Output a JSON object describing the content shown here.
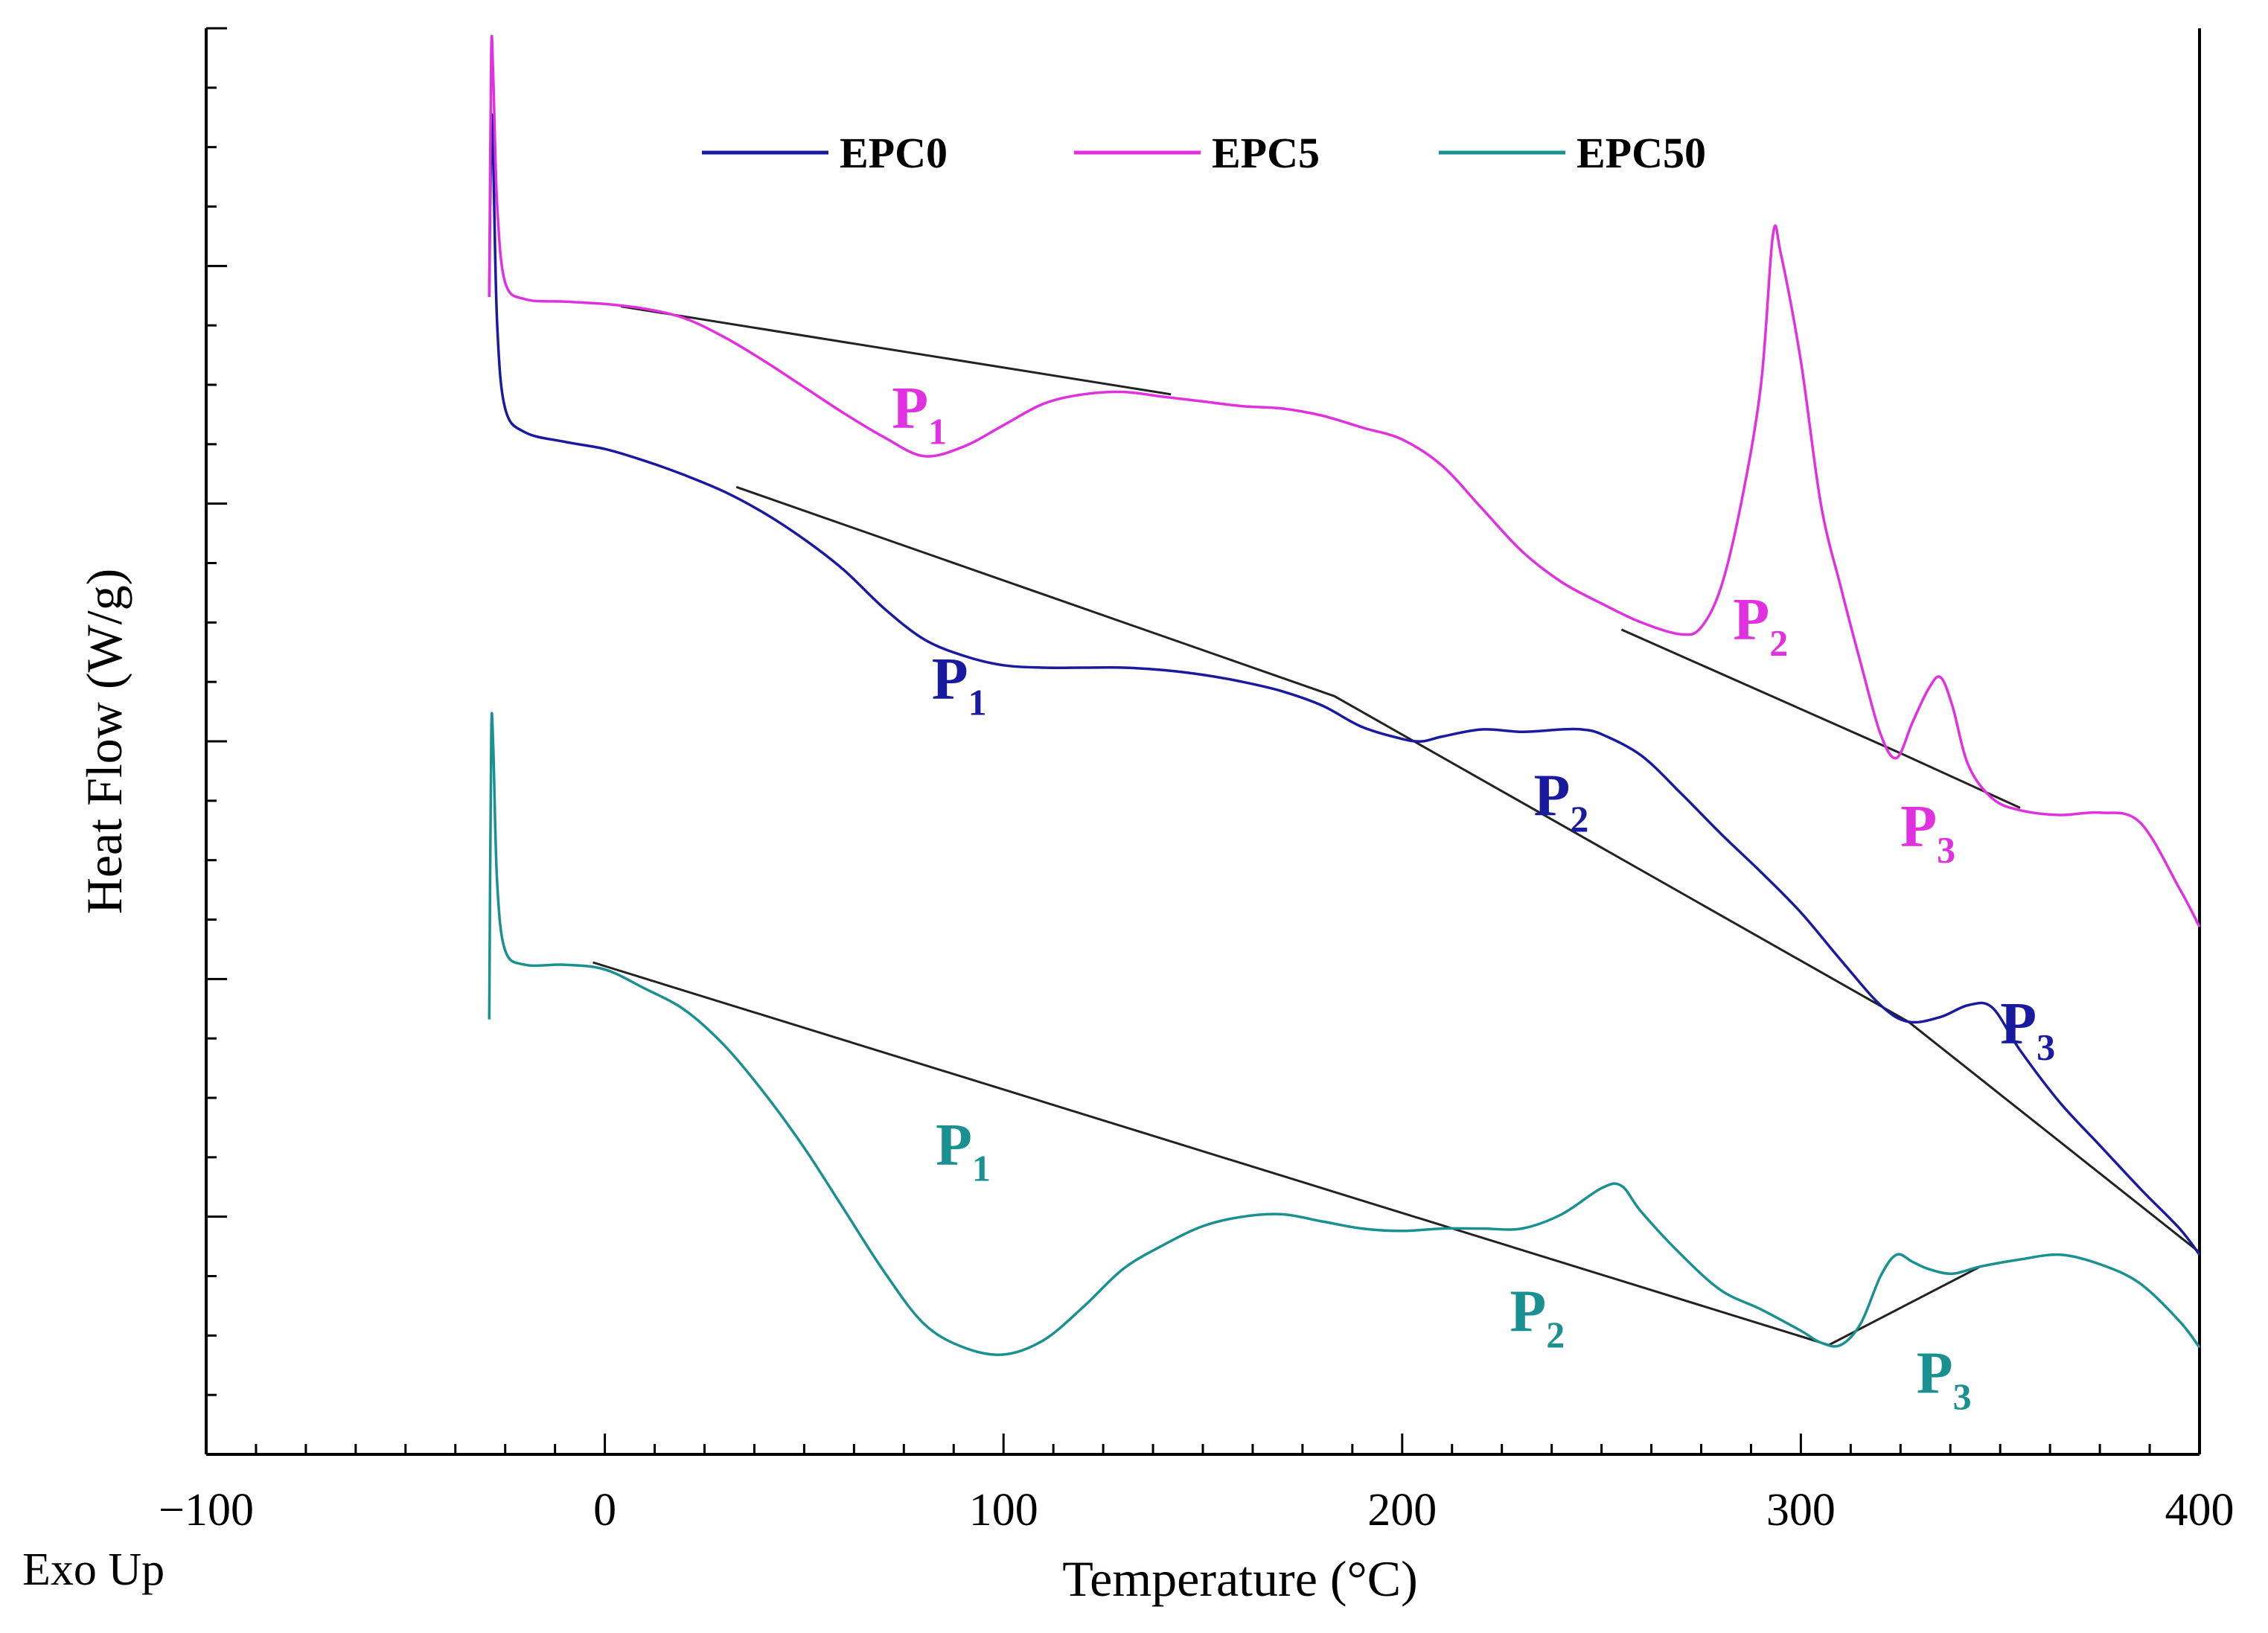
{
  "chart_data": {
    "type": "line",
    "title": "",
    "xlabel": "Temperature (°C)",
    "ylabel": "Heat Flow (W/g)",
    "corner_note": "Exo Up",
    "xlim": [
      -100,
      400
    ],
    "ylim": [
      0,
      600
    ],
    "x_ticks": [
      -100,
      0,
      100,
      200,
      300,
      400
    ],
    "x_tick_labels": [
      "−100",
      "0",
      "100",
      "200",
      "300",
      "400"
    ],
    "y_tick_labels_shown": false,
    "legend_position": "top-center",
    "series": [
      {
        "name": "EPC0",
        "color": "#1a1aa0",
        "points": [
          [
            -29,
            487
          ],
          [
            -28.5,
            560
          ],
          [
            -28,
            545
          ],
          [
            -27,
            475
          ],
          [
            -25,
            440
          ],
          [
            -20,
            430
          ],
          [
            -10,
            426
          ],
          [
            0,
            423
          ],
          [
            10,
            418
          ],
          [
            20,
            412
          ],
          [
            30,
            405
          ],
          [
            40,
            396
          ],
          [
            50,
            385
          ],
          [
            60,
            372
          ],
          [
            70,
            356
          ],
          [
            80,
            343
          ],
          [
            90,
            336
          ],
          [
            100,
            332
          ],
          [
            110,
            331
          ],
          [
            120,
            331
          ],
          [
            130,
            331
          ],
          [
            140,
            330
          ],
          [
            150,
            328
          ],
          [
            160,
            325
          ],
          [
            170,
            321
          ],
          [
            180,
            315
          ],
          [
            190,
            306
          ],
          [
            200,
            301
          ],
          [
            205,
            300
          ],
          [
            210,
            302
          ],
          [
            220,
            305
          ],
          [
            230,
            304
          ],
          [
            240,
            305
          ],
          [
            245,
            305
          ],
          [
            250,
            303
          ],
          [
            260,
            294
          ],
          [
            270,
            278
          ],
          [
            280,
            261
          ],
          [
            290,
            245
          ],
          [
            300,
            228
          ],
          [
            310,
            208
          ],
          [
            320,
            189
          ],
          [
            327,
            182
          ],
          [
            335,
            184
          ],
          [
            342,
            189
          ],
          [
            348,
            188
          ],
          [
            355,
            170
          ],
          [
            365,
            148
          ],
          [
            375,
            130
          ],
          [
            385,
            112
          ],
          [
            395,
            95
          ],
          [
            400,
            84
          ]
        ]
      },
      {
        "name": "EPC5",
        "color": "#e030e0",
        "points": [
          [
            -29,
            487
          ],
          [
            -28.5,
            590
          ],
          [
            -28,
            580
          ],
          [
            -27,
            525
          ],
          [
            -25,
            493
          ],
          [
            -20,
            486
          ],
          [
            -10,
            485
          ],
          [
            0,
            484
          ],
          [
            10,
            482
          ],
          [
            20,
            478
          ],
          [
            30,
            470
          ],
          [
            40,
            460
          ],
          [
            50,
            449
          ],
          [
            60,
            438
          ],
          [
            70,
            428
          ],
          [
            80,
            420
          ],
          [
            90,
            424
          ],
          [
            100,
            433
          ],
          [
            110,
            442
          ],
          [
            120,
            446
          ],
          [
            130,
            447
          ],
          [
            140,
            445
          ],
          [
            150,
            443
          ],
          [
            160,
            441
          ],
          [
            170,
            440
          ],
          [
            180,
            437
          ],
          [
            190,
            432
          ],
          [
            200,
            427
          ],
          [
            210,
            416
          ],
          [
            220,
            398
          ],
          [
            230,
            380
          ],
          [
            240,
            367
          ],
          [
            250,
            358
          ],
          [
            260,
            350
          ],
          [
            270,
            345
          ],
          [
            275,
            348
          ],
          [
            280,
            365
          ],
          [
            285,
            400
          ],
          [
            290,
            450
          ],
          [
            293,
            513
          ],
          [
            295,
            505
          ],
          [
            300,
            460
          ],
          [
            305,
            400
          ],
          [
            310,
            365
          ],
          [
            315,
            333
          ],
          [
            320,
            303
          ],
          [
            324,
            293
          ],
          [
            328,
            308
          ],
          [
            332,
            322
          ],
          [
            335,
            327
          ],
          [
            338,
            315
          ],
          [
            342,
            290
          ],
          [
            348,
            276
          ],
          [
            355,
            271
          ],
          [
            365,
            269
          ],
          [
            375,
            270
          ],
          [
            385,
            266
          ],
          [
            395,
            238
          ],
          [
            400,
            222
          ]
        ]
      },
      {
        "name": "EPC50",
        "color": "#1a9090",
        "points": [
          [
            -29,
            183
          ],
          [
            -28.5,
            302
          ],
          [
            -28,
            298
          ],
          [
            -27,
            240
          ],
          [
            -25,
            212
          ],
          [
            -20,
            206
          ],
          [
            -10,
            206
          ],
          [
            0,
            204
          ],
          [
            10,
            196
          ],
          [
            20,
            187
          ],
          [
            30,
            172
          ],
          [
            40,
            152
          ],
          [
            50,
            129
          ],
          [
            60,
            103
          ],
          [
            70,
            77
          ],
          [
            80,
            55
          ],
          [
            90,
            45
          ],
          [
            100,
            42
          ],
          [
            110,
            48
          ],
          [
            120,
            62
          ],
          [
            130,
            78
          ],
          [
            140,
            88
          ],
          [
            150,
            96
          ],
          [
            160,
            100
          ],
          [
            170,
            101
          ],
          [
            180,
            98
          ],
          [
            190,
            95
          ],
          [
            200,
            94
          ],
          [
            210,
            95
          ],
          [
            220,
            95
          ],
          [
            230,
            95
          ],
          [
            240,
            101
          ],
          [
            250,
            112
          ],
          [
            255,
            113
          ],
          [
            260,
            102
          ],
          [
            270,
            84
          ],
          [
            280,
            69
          ],
          [
            290,
            61
          ],
          [
            300,
            52
          ],
          [
            305,
            47
          ],
          [
            310,
            46
          ],
          [
            315,
            55
          ],
          [
            320,
            75
          ],
          [
            324,
            84
          ],
          [
            328,
            81
          ],
          [
            332,
            78
          ],
          [
            338,
            76
          ],
          [
            345,
            79
          ],
          [
            355,
            82
          ],
          [
            365,
            84
          ],
          [
            375,
            80
          ],
          [
            385,
            72
          ],
          [
            395,
            56
          ],
          [
            400,
            45
          ]
        ]
      }
    ],
    "baselines": [
      {
        "series": "EPC5",
        "points": [
          [
            4,
            483
          ],
          [
            142,
            446
          ]
        ]
      },
      {
        "series": "EPC5",
        "points": [
          [
            255,
            347
          ],
          [
            325,
            295
          ],
          [
            355,
            272
          ]
        ]
      },
      {
        "series": "EPC0",
        "points": [
          [
            33,
            407
          ],
          [
            183,
            319
          ],
          [
            327,
            182
          ],
          [
            400,
            85
          ]
        ]
      },
      {
        "series": "EPC50",
        "points": [
          [
            -3,
            207
          ],
          [
            307,
            46
          ],
          [
            345,
            79
          ]
        ]
      }
    ],
    "annotations": [
      {
        "series": "EPC5",
        "text": "P",
        "subscript": "1",
        "x": 72,
        "y": 432,
        "size": 80
      },
      {
        "series": "EPC5",
        "text": "P",
        "subscript": "2",
        "x": 283,
        "y": 343,
        "size": 80
      },
      {
        "series": "EPC5",
        "text": "P",
        "subscript": "3",
        "x": 325,
        "y": 256,
        "size": 80
      },
      {
        "series": "EPC0",
        "text": "P",
        "subscript": "1",
        "x": 82,
        "y": 318,
        "size": 80
      },
      {
        "series": "EPC0",
        "text": "P",
        "subscript": "2",
        "x": 233,
        "y": 269,
        "size": 80
      },
      {
        "series": "EPC0",
        "text": "P",
        "subscript": "3",
        "x": 350,
        "y": 173,
        "size": 80
      },
      {
        "series": "EPC50",
        "text": "P",
        "subscript": "1",
        "x": 83,
        "y": 122,
        "size": 80
      },
      {
        "series": "EPC50",
        "text": "P",
        "subscript": "2",
        "x": 227,
        "y": 52,
        "size": 80
      },
      {
        "series": "EPC50",
        "text": "P",
        "subscript": "3",
        "x": 329,
        "y": 26,
        "size": 80
      }
    ]
  }
}
